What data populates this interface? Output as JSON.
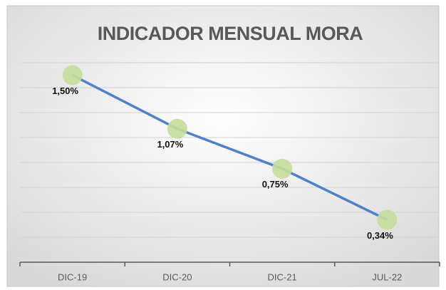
{
  "chart_data": {
    "type": "line",
    "title": "INDICADOR MENSUAL MORA",
    "categories": [
      "DIC-19",
      "DIC-20",
      "DIC-21",
      "JUL-22"
    ],
    "series": [
      {
        "name": "Mora",
        "color": "#4f81c8",
        "marker_color": "#c6dd9c",
        "values": [
          1.5,
          1.07,
          0.75,
          0.34
        ],
        "value_labels": [
          "1,50%",
          "1,07%",
          "0,75%",
          "0,34%"
        ]
      }
    ],
    "ylim": [
      0,
      1.6
    ],
    "yticks": [
      0,
      0.2,
      0.4,
      0.6,
      0.8,
      1.0,
      1.2,
      1.4,
      1.6
    ],
    "grid": true
  }
}
